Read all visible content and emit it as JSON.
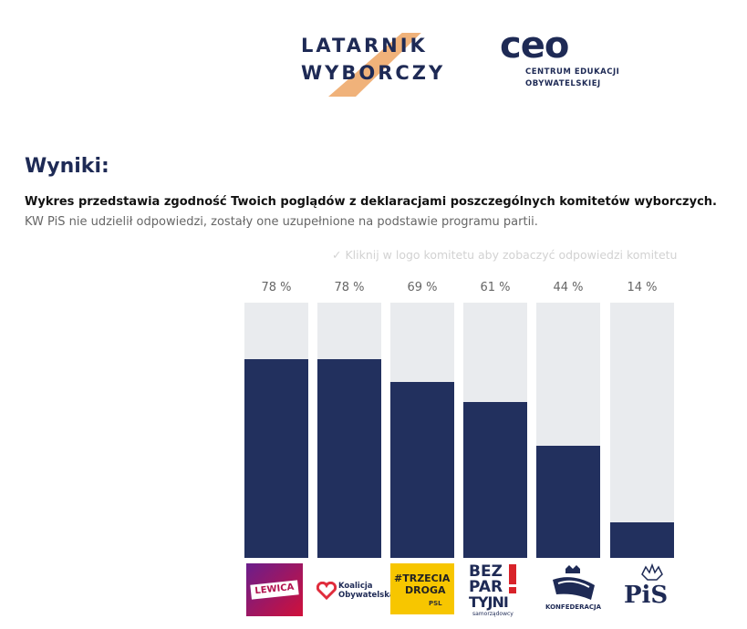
{
  "header": {
    "brand_left": [
      "LATARNIK",
      "WYBORCZY"
    ],
    "brand_right": {
      "mark": "ceo",
      "sub": [
        "CENTRUM EDUKACJI",
        "OBYWATELSKIEJ"
      ]
    }
  },
  "main": {
    "heading": "Wyniki:",
    "description": "Wykres przedstawia zgodność Twoich poglądów z deklaracjami poszczególnych komitetów wyborczych.",
    "note": "KW PiS nie udzielił odpowiedzi, zostały one uzupełnione na podstawie programu partii.",
    "hint": "✓ Kliknij w logo komitetu aby zobaczyć odpowiedzi komitetu"
  },
  "colors": {
    "navy": "#22305e",
    "track": "#e9ebee",
    "accent": "#f0b27a",
    "lewica": "#b1124e",
    "trzecia": "#f7c600",
    "ko": "#e02c3c"
  },
  "chart_data": {
    "type": "bar",
    "title": "",
    "ylim": [
      0,
      100
    ],
    "unit": "%",
    "categories": [
      "Lewica",
      "Koalicja Obywatelska",
      "Trzecia Droga",
      "Bezpartyjni Samorządowcy",
      "Konfederacja",
      "PiS"
    ],
    "values": [
      78,
      78,
      69,
      61,
      44,
      14
    ],
    "labels": [
      "78 %",
      "78 %",
      "69 %",
      "61 %",
      "44 %",
      "14 %"
    ]
  },
  "logos": {
    "lewica": "LEWICA",
    "ko": [
      "Koalicja",
      "Obywatelska"
    ],
    "trzecia": [
      "#TRZECIA",
      "DROGA"
    ],
    "trzecia_small": "PSL",
    "bez": [
      "BEZ",
      "PAR",
      "TYJNI",
      "samorządowcy"
    ],
    "konf": "KONFEDERACJA",
    "pis": "PiS"
  }
}
